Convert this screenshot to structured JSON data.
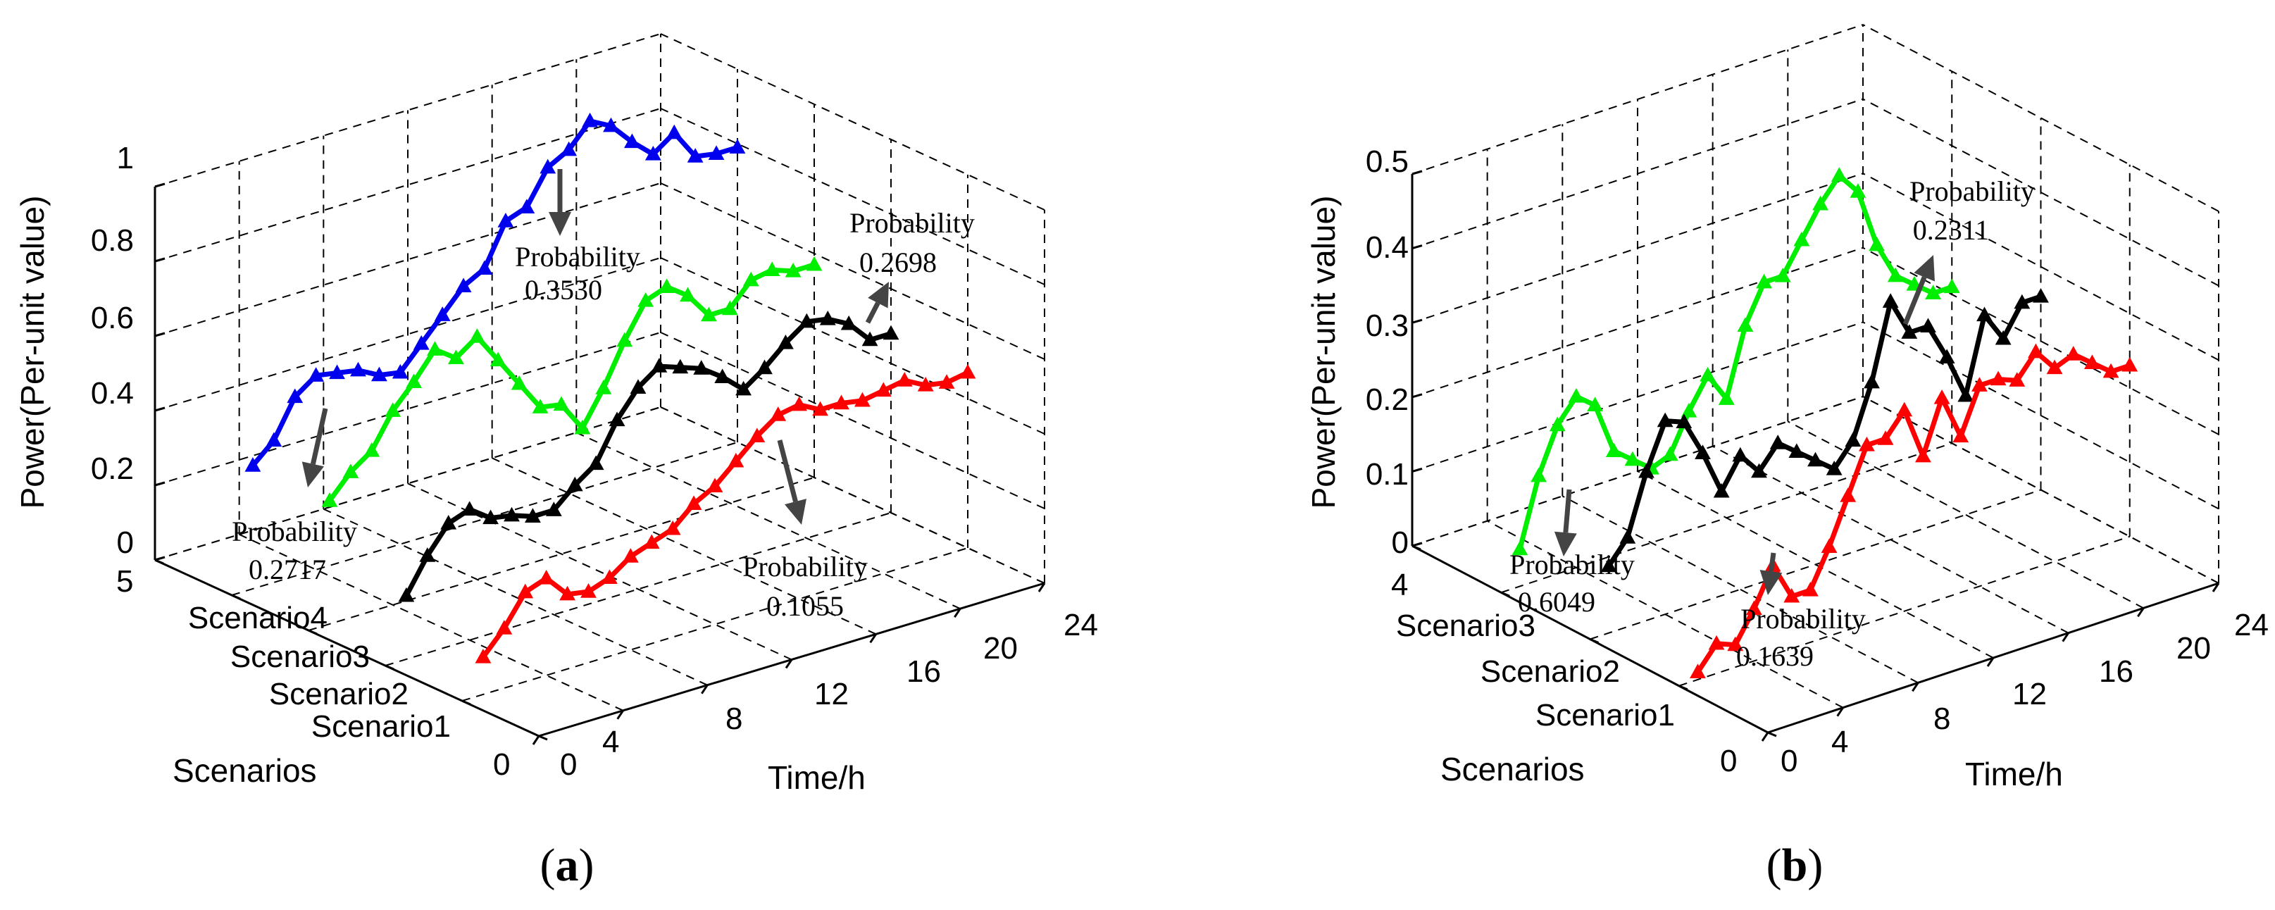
{
  "chart_data": [
    {
      "type": "line",
      "panel_label": "a",
      "zlabel": "Power(Per-unit value)",
      "xlabel": "Time/h",
      "ylabel": "Scenarios",
      "zlim": [
        0,
        1
      ],
      "zticks": [
        "0",
        "0.2",
        "0.4",
        "0.6",
        "0.8",
        "1"
      ],
      "xticks": [
        "0",
        "4",
        "8",
        "12",
        "16",
        "20",
        "24"
      ],
      "yticks": [
        "0",
        "1",
        "2",
        "3",
        "4",
        "5"
      ],
      "scenario_tick_labels": [
        "Scenario1",
        "Scenario2",
        "Scenario3",
        "Scenario4"
      ],
      "grid": true,
      "series": [
        {
          "name": "Scenario1",
          "color": "#ff0000",
          "scenario": 1,
          "values": [
            0.1,
            0.16,
            0.24,
            0.26,
            0.2,
            0.19,
            0.21,
            0.25,
            0.27,
            0.29,
            0.34,
            0.37,
            0.42,
            0.47,
            0.51,
            0.52,
            0.49,
            0.49,
            0.48,
            0.49,
            0.5,
            0.47,
            0.46,
            0.47
          ]
        },
        {
          "name": "Scenario2",
          "color": "#000000",
          "scenario": 2,
          "values": [
            0.17,
            0.26,
            0.33,
            0.35,
            0.31,
            0.3,
            0.28,
            0.28,
            0.33,
            0.37,
            0.47,
            0.54,
            0.58,
            0.56,
            0.54,
            0.5,
            0.45,
            0.49,
            0.54,
            0.58,
            0.57,
            0.54,
            0.48,
            0.48
          ]
        },
        {
          "name": "Scenario3",
          "color": "#00ee00",
          "scenario": 3,
          "values": [
            0.33,
            0.39,
            0.43,
            0.52,
            0.58,
            0.65,
            0.61,
            0.65,
            0.57,
            0.49,
            0.41,
            0.4,
            0.32,
            0.41,
            0.52,
            0.61,
            0.63,
            0.59,
            0.52,
            0.52,
            0.58,
            0.59,
            0.57,
            0.57
          ]
        },
        {
          "name": "Scenario4",
          "color": "#0000ee",
          "scenario": 4,
          "values": [
            0.33,
            0.38,
            0.48,
            0.52,
            0.51,
            0.5,
            0.47,
            0.46,
            0.52,
            0.58,
            0.64,
            0.67,
            0.78,
            0.8,
            0.89,
            0.92,
            0.98,
            0.95,
            0.89,
            0.84,
            0.88,
            0.8,
            0.79,
            0.79
          ]
        }
      ],
      "annotations": [
        {
          "label": "Probability",
          "value": "0.3530"
        },
        {
          "label": "Probability",
          "value": "0.2698"
        },
        {
          "label": "Probability",
          "value": "0.2717"
        },
        {
          "label": "Probability",
          "value": "0.1055"
        }
      ]
    },
    {
      "type": "line",
      "panel_label": "b",
      "zlabel": "Power(Per-unit value)",
      "xlabel": "Time/h",
      "ylabel": "Scenarios",
      "zlim": [
        0,
        0.5
      ],
      "zticks": [
        "0",
        "0.1",
        "0.2",
        "0.3",
        "0.4",
        "0.5"
      ],
      "xticks": [
        "0",
        "4",
        "8",
        "12",
        "16",
        "20",
        "24"
      ],
      "yticks": [
        "0",
        "1",
        "2",
        "3",
        "4"
      ],
      "scenario_tick_labels": [
        "Scenario1",
        "Scenario2",
        "Scenario3"
      ],
      "grid": true,
      "series": [
        {
          "name": "Scenario1",
          "color": "#ff0000",
          "scenario": 1,
          "values": [
            0.01,
            0.04,
            0.03,
            0.07,
            0.12,
            0.07,
            0.07,
            0.12,
            0.18,
            0.24,
            0.24,
            0.27,
            0.2,
            0.27,
            0.21,
            0.27,
            0.27,
            0.26,
            0.29,
            0.26,
            0.27,
            0.25,
            0.23,
            0.23
          ]
        },
        {
          "name": "Scenario2",
          "color": "#000000",
          "scenario": 2,
          "values": [
            0.09,
            0.12,
            0.2,
            0.26,
            0.25,
            0.2,
            0.14,
            0.18,
            0.15,
            0.18,
            0.16,
            0.14,
            0.12,
            0.15,
            0.22,
            0.32,
            0.27,
            0.27,
            0.22,
            0.16,
            0.26,
            0.22,
            0.26,
            0.26
          ]
        },
        {
          "name": "Scenario3",
          "color": "#00ee00",
          "scenario": 3,
          "values": [
            0.05,
            0.14,
            0.2,
            0.23,
            0.21,
            0.14,
            0.12,
            0.1,
            0.11,
            0.16,
            0.2,
            0.16,
            0.25,
            0.3,
            0.3,
            0.34,
            0.38,
            0.41,
            0.38,
            0.3,
            0.25,
            0.23,
            0.21,
            0.21
          ]
        }
      ],
      "annotations": [
        {
          "label": "Probability",
          "value": "0.2311"
        },
        {
          "label": "Probability",
          "value": "0.6049"
        },
        {
          "label": "Probability",
          "value": "0.1639"
        }
      ]
    }
  ]
}
